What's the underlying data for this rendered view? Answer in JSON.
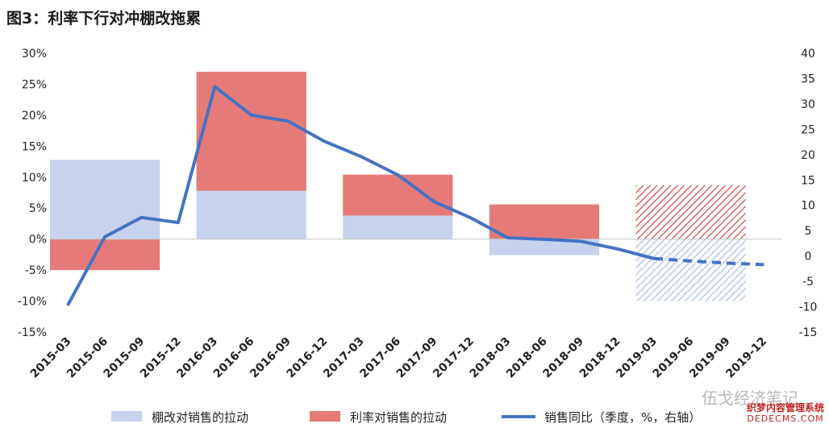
{
  "title": "图3：利率下行对冲棚改拖累",
  "chart_data": {
    "type": "bar",
    "categories": [
      "2015-03",
      "2015-06",
      "2015-09",
      "2015-12",
      "2016-03",
      "2016-06",
      "2016-09",
      "2016-12",
      "2017-03",
      "2017-06",
      "2017-09",
      "2017-12",
      "2018-03",
      "2018-06",
      "2018-09",
      "2018-12",
      "2019-03",
      "2019-06",
      "2019-09",
      "2019-12"
    ],
    "y_left": {
      "ticks": [
        "30%",
        "25%",
        "20%",
        "15%",
        "10%",
        "5%",
        "0%",
        "-5%",
        "-10%",
        "-15%"
      ],
      "ylim": [
        -15,
        30
      ]
    },
    "y_right": {
      "ticks": [
        "40",
        "35",
        "30",
        "25",
        "20",
        "15",
        "10",
        "5",
        "0",
        "-5",
        "-10",
        "-15"
      ],
      "ylim": [
        -15,
        40
      ]
    },
    "bars": [
      {
        "period": "2015",
        "start": "2015-03",
        "end": "2015-09",
        "shantytown": 12.8,
        "rate": -5.0,
        "forecast": false
      },
      {
        "period": "2016",
        "start": "2016-03",
        "end": "2016-09",
        "shantytown": 7.8,
        "rate": 19.2,
        "forecast": false
      },
      {
        "period": "2017",
        "start": "2017-03",
        "end": "2017-09",
        "shantytown": 3.8,
        "rate": 6.6,
        "forecast": false
      },
      {
        "period": "2018",
        "start": "2018-03",
        "end": "2018-09",
        "shantytown": -2.6,
        "rate": 5.6,
        "forecast": false
      },
      {
        "period": "2019",
        "start": "2019-03",
        "end": "2019-09",
        "shantytown": -10.0,
        "rate": 8.7,
        "forecast": true
      }
    ],
    "series": [
      {
        "name": "棚改对销售的拉动",
        "color": "#c7d3ec"
      },
      {
        "name": "利率对销售的拉动",
        "color": "#e57a78"
      },
      {
        "name": "销售同比（季度，%，右轴）",
        "color": "#4472c4",
        "values": [
          -9.5,
          3.8,
          7.6,
          6.6,
          33.4,
          27.8,
          26.6,
          22.6,
          19.6,
          16.0,
          10.7,
          7.5,
          3.6,
          3.3,
          2.9,
          1.4,
          -0.5,
          -1.0,
          -1.4,
          -1.7
        ],
        "forecast_from": "2019-03"
      }
    ]
  },
  "watermark": "伍戈经济笔记",
  "site": {
    "line1": "织梦内容管理系统",
    "line2": "DEDECMS.COM"
  }
}
